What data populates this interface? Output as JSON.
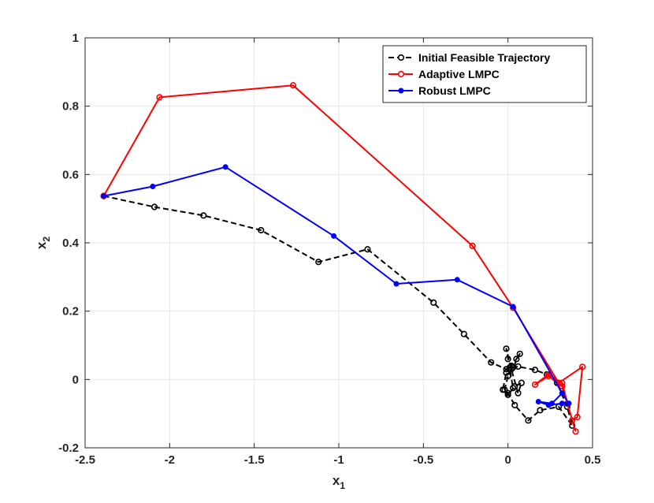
{
  "chart_data": {
    "type": "line",
    "xlabel": "x",
    "xlabel_sub": "1",
    "ylabel": "x",
    "ylabel_sub": "2",
    "xlim": [
      -2.5,
      0.5
    ],
    "ylim": [
      -0.2,
      1.0
    ],
    "xticks": [
      -2.5,
      -2,
      -1.5,
      -1,
      -0.5,
      0,
      0.5
    ],
    "xtick_labels": [
      "-2.5",
      "-2",
      "-1.5",
      "-1",
      "-0.5",
      "0",
      "0.5"
    ],
    "yticks": [
      -0.2,
      0,
      0.2,
      0.4,
      0.6,
      0.8,
      1.0
    ],
    "ytick_labels": [
      "-0.2",
      "0",
      "0.2",
      "0.4",
      "0.6",
      "0.8",
      "1"
    ],
    "grid": true,
    "legend_position": "top-right",
    "series": [
      {
        "name": "Initial Feasible Trajectory",
        "color": "#000000",
        "dash": true,
        "marker": "open-circle",
        "x": [
          -2.39,
          -2.09,
          -1.8,
          -1.46,
          -1.12,
          -0.83,
          -0.44,
          -0.26,
          -0.1,
          -0.01,
          0.06,
          0.16,
          0.23,
          0.29,
          0.35,
          0.38,
          0.3,
          0.19,
          0.12,
          0.04,
          0.0,
          -0.02,
          0.0,
          0.03,
          0.07,
          0.05,
          0.02,
          0.0,
          -0.01,
          0.02,
          0.06,
          0.08,
          0.04,
          0.0,
          -0.03,
          -0.01,
          0.01,
          0.03
        ],
        "y": [
          0.537,
          0.505,
          0.48,
          0.437,
          0.344,
          0.381,
          0.225,
          0.133,
          0.05,
          0.03,
          0.038,
          0.028,
          0.015,
          -0.01,
          -0.08,
          -0.135,
          -0.08,
          -0.09,
          -0.12,
          -0.075,
          -0.04,
          -0.03,
          0.01,
          0.035,
          0.075,
          0.06,
          0.04,
          0.06,
          0.09,
          0.03,
          -0.04,
          -0.01,
          -0.02,
          -0.045,
          -0.03,
          0.02,
          0.035,
          -0.025
        ]
      },
      {
        "name": "Adaptive LMPC",
        "color": "#ff0000",
        "dash": false,
        "marker": "open-circle",
        "x": [
          -2.39,
          -2.06,
          -1.27,
          -0.21,
          0.03,
          0.3,
          0.44,
          0.41,
          0.38,
          0.32,
          0.24,
          0.16,
          0.24,
          0.32,
          0.4
        ],
        "y": [
          0.537,
          0.826,
          0.861,
          0.391,
          0.21,
          -0.01,
          0.037,
          -0.11,
          -0.12,
          -0.01,
          0.015,
          -0.015,
          0.01,
          -0.02,
          -0.152
        ]
      },
      {
        "name": "Robust LMPC",
        "color": "#0000ff",
        "dash": false,
        "marker": "filled-circle",
        "x": [
          -2.39,
          -2.1,
          -1.67,
          -1.03,
          -0.66,
          -0.3,
          0.03,
          0.32,
          0.36,
          0.32,
          0.24,
          0.18,
          0.26,
          0.32
        ],
        "y": [
          0.537,
          0.565,
          0.622,
          0.42,
          0.28,
          0.292,
          0.213,
          -0.04,
          -0.07,
          -0.07,
          -0.075,
          -0.065,
          -0.07,
          -0.04
        ]
      }
    ]
  }
}
